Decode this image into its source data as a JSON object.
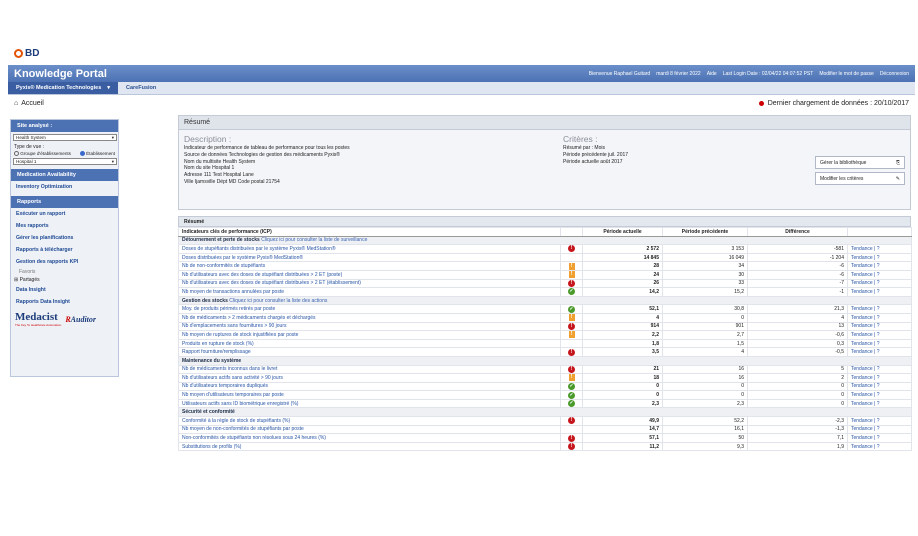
{
  "brand": {
    "logo": "BD"
  },
  "header": {
    "title": "Knowledge Portal",
    "welcome": "Bienvenue Raphael Guitard",
    "date": "mardi 8 février 2022",
    "aide": "Aide",
    "last_login": "Last Login Date : 02/04/22 04:07:52 PST",
    "change_pw": "Modifier le mot de passe",
    "logout": "Déconnexion"
  },
  "tabs": [
    {
      "label": "Pyxis® Medication Technologies"
    },
    {
      "label": "CareFusion"
    }
  ],
  "subbar": {
    "home": "Accueil",
    "last_load": "Dernier chargement de données : 20/10/2017"
  },
  "sidebar": {
    "site_head": "Site analysé :",
    "system_select": "Health System",
    "view_type": "Type de vue :",
    "radio_group": "Groupe d'établissements",
    "radio_etab": "Établissement",
    "hospital_select": "Hospital 1",
    "med_head": "Medication Availability",
    "inventory": "Inventory Optimization",
    "reports_head": "Rapports",
    "links": [
      "Exécuter un rapport",
      "Mes rapports",
      "Gérer les planifications",
      "Rapports à télécharger",
      "Gestion des rapports KPI"
    ],
    "favoris": "Favoris",
    "partages": "Partagés",
    "data_insight": "Data Insight",
    "reports_di": "Rapports Data Insight",
    "medacist": "Medacist",
    "auditor": "Auditor",
    "tagline": "The Key To Healthcare Automation"
  },
  "resume": {
    "title": "Résumé",
    "desc_head": "Description :",
    "desc_lines": [
      "Indicateur de performance de tableau de performance pour tous les postes",
      "Source de données Technologies de gestion des médicaments Pyxis®",
      "Nom du multisite Health System",
      "Nom du site Hospital 1",
      "Adresse 111 Test Hospital Lane",
      "Ville Ijamsville  Dépt MD  Code postal 21754"
    ],
    "crit_head": "Critères :",
    "crit_lines": [
      "Résumé par : Mois",
      "Période précédente juil. 2017",
      "Période actuelle août 2017"
    ],
    "btn_library": "Gérer la bibliothèque",
    "btn_criteria": "Modifier les critères"
  },
  "table": {
    "title": "Résumé",
    "headers": [
      "Indicateurs clés de performance (ICP)",
      "",
      "Période actuelle",
      "Période précédente",
      "Différence",
      ""
    ],
    "sections": [
      {
        "name": "Détournement et perte de stocks",
        "link": "Cliquez ici pour consulter la liste de surveillance",
        "rows": [
          {
            "name": "Doses de stupéfiants distribuées par le système Pyxis® MedStation®",
            "icon": "red",
            "cur": "2 572",
            "prev": "3 153",
            "diff": "-581"
          },
          {
            "name": "Doses distribuées par le système Pyxis® MedStation®",
            "icon": "",
            "cur": "14 845",
            "prev": "16 049",
            "diff": "-1 204"
          },
          {
            "name": "Nb de non-conformités de stupéfiants",
            "icon": "orange",
            "cur": "28",
            "prev": "34",
            "diff": "-6"
          },
          {
            "name": "Nb d'utilisateurs avec des doses de stupéfiant distribuées > 2 ET (poste)",
            "icon": "orange",
            "cur": "24",
            "prev": "30",
            "diff": "-6"
          },
          {
            "name": "Nb d'utilisateurs avec des doses de stupéfiant distribuées > 2 ET (établissement)",
            "icon": "red",
            "cur": "26",
            "prev": "33",
            "diff": "-7"
          },
          {
            "name": "Nb moyen de transactions annulées par poste",
            "icon": "green",
            "cur": "14,2",
            "prev": "15,2",
            "diff": "-1"
          }
        ]
      },
      {
        "name": "Gestion des stocks",
        "link": "Cliquez ici pour consulter la liste des actions",
        "rows": [
          {
            "name": "Moy. de produits périmés retirés par poste",
            "icon": "green",
            "cur": "52,1",
            "prev": "30,8",
            "diff": "21,3"
          },
          {
            "name": "Nb de médicaments > 2 médicaments chargés et déchargés",
            "icon": "orange",
            "cur": "4",
            "prev": "0",
            "diff": "4"
          },
          {
            "name": "Nb d'emplacements sans fournitures > 90 jours",
            "icon": "red",
            "cur": "914",
            "prev": "901",
            "diff": "13"
          },
          {
            "name": "Nb moyen de ruptures de stock injustifiées par poste",
            "icon": "orange",
            "cur": "2,2",
            "prev": "2,7",
            "diff": "-0,6"
          },
          {
            "name": "Produits en rupture de stock (%)",
            "icon": "",
            "cur": "1,8",
            "prev": "1,5",
            "diff": "0,3"
          },
          {
            "name": "Rapport fourniture/remplissage",
            "icon": "red",
            "cur": "3,5",
            "prev": "4",
            "diff": "-0,5"
          }
        ]
      },
      {
        "name": "Maintenance du système",
        "link": "",
        "rows": [
          {
            "name": "Nb de médicaments inconnus dans le livret",
            "icon": "red",
            "cur": "21",
            "prev": "16",
            "diff": "5"
          },
          {
            "name": "Nb d'utilisateurs actifs sans activité > 90 jours",
            "icon": "orange",
            "cur": "18",
            "prev": "16",
            "diff": "2"
          },
          {
            "name": "Nb d'utilisateurs temporaires dupliqués",
            "icon": "green",
            "cur": "0",
            "prev": "0",
            "diff": "0"
          },
          {
            "name": "Nb moyen d'utilisateurs temporaires par poste",
            "icon": "green",
            "cur": "0",
            "prev": "0",
            "diff": "0"
          },
          {
            "name": "Utilisateurs actifs sans ID biométrique enregistré (%)",
            "icon": "green",
            "cur": "2,3",
            "prev": "2,3",
            "diff": "0"
          }
        ]
      },
      {
        "name": "Sécurité et conformité",
        "link": "",
        "rows": [
          {
            "name": "Conformité à la règle de stock de stupéfiants (%)",
            "icon": "red",
            "cur": "49,9",
            "prev": "52,2",
            "diff": "-2,3"
          },
          {
            "name": "Nb moyen de non-conformités de stupéfiants par poste",
            "icon": "",
            "cur": "14,7",
            "prev": "16,1",
            "diff": "-1,3"
          },
          {
            "name": "Non-conformités de stupéfiants non résolues sous 24 heures (%)",
            "icon": "red",
            "cur": "57,1",
            "prev": "50",
            "diff": "7,1"
          },
          {
            "name": "Substitutions de profils (%)",
            "icon": "red",
            "cur": "11,2",
            "prev": "9,3",
            "diff": "1,9"
          }
        ]
      }
    ],
    "action_tendance": "Tendance",
    "action_sep": "|",
    "action_help": "?"
  }
}
